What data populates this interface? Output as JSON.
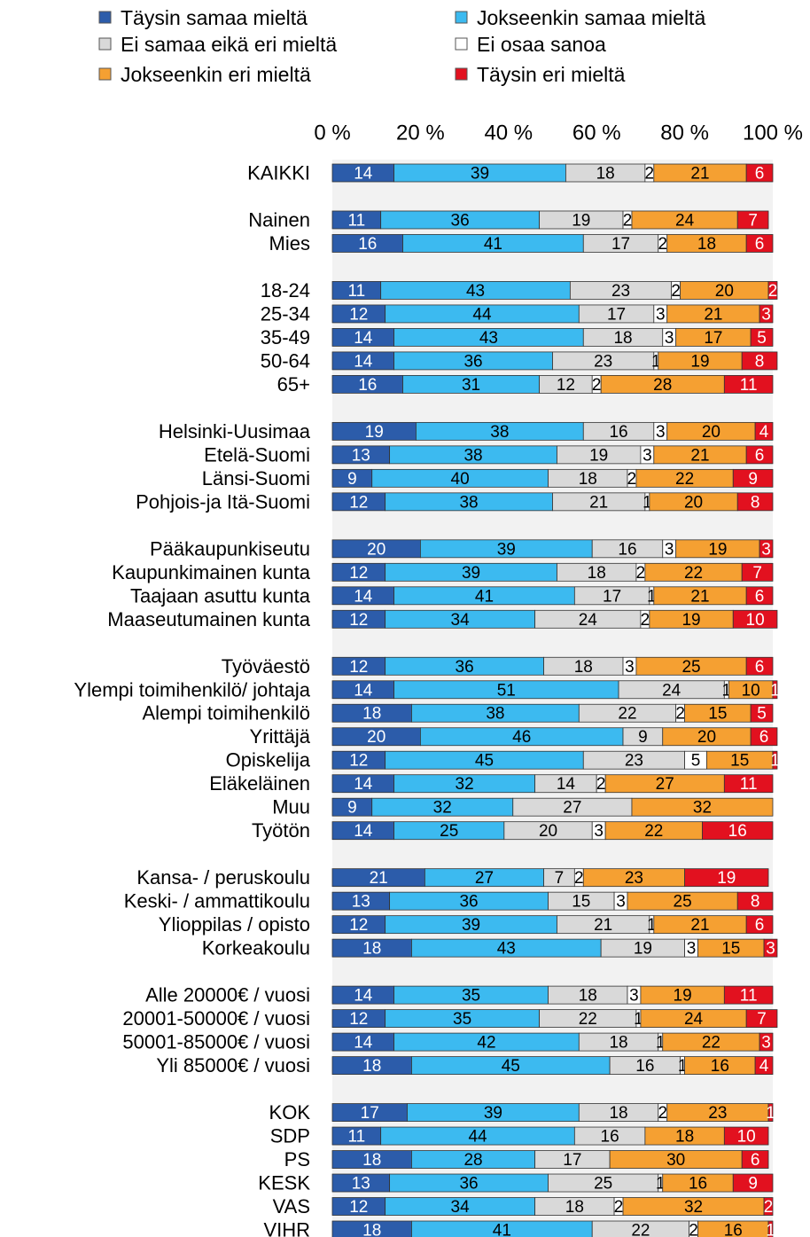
{
  "chart_data": {
    "type": "stacked_barh",
    "xlim": [
      0,
      100
    ],
    "xticks": [
      {
        "value": 0,
        "label": "0 %"
      },
      {
        "value": 20,
        "label": "20 %"
      },
      {
        "value": 40,
        "label": "40 %"
      },
      {
        "value": 60,
        "label": "60 %"
      },
      {
        "value": 80,
        "label": "80 %"
      },
      {
        "value": 100,
        "label": "100 %"
      }
    ],
    "categories": [
      "KAIKKI",
      null,
      "Nainen",
      "Mies",
      null,
      "18-24",
      "25-34",
      "35-49",
      "50-64",
      "65+",
      null,
      "Helsinki-Uusimaa",
      "Etelä-Suomi",
      "Länsi-Suomi",
      "Pohjois-ja Itä-Suomi",
      null,
      "Pääkaupunkiseutu",
      "Kaupunkimainen kunta",
      "Taajaan asuttu kunta",
      "Maaseutumainen kunta",
      null,
      "Työväestö",
      "Ylempi toimihenkilö/ johtaja",
      "Alempi toimihenkilö",
      "Yrittäjä",
      "Opiskelija",
      "Eläkeläinen",
      "Muu",
      "Työtön",
      null,
      "Kansa- / peruskoulu",
      "Keski- / ammattikoulu",
      "Ylioppilas / opisto",
      "Korkeakoulu",
      null,
      "Alle 20000€ / vuosi",
      "20001-50000€ / vuosi",
      "50001-85000€ / vuosi",
      "Yli 85000€ / vuosi",
      null,
      "KOK",
      "SDP",
      "PS",
      "KESK",
      "VAS",
      "VIHR"
    ],
    "series": [
      {
        "name": "Täysin samaa mieltä",
        "color": "#2c5caa",
        "values": [
          14,
          null,
          11,
          16,
          null,
          11,
          12,
          14,
          14,
          16,
          null,
          19,
          13,
          9,
          12,
          null,
          20,
          12,
          14,
          12,
          null,
          12,
          14,
          18,
          20,
          12,
          14,
          9,
          14,
          null,
          21,
          13,
          12,
          18,
          null,
          14,
          12,
          14,
          18,
          null,
          17,
          11,
          18,
          13,
          12,
          18
        ]
      },
      {
        "name": "Jokseenkin samaa mieltä",
        "color": "#3cbaf0",
        "values": [
          39,
          null,
          36,
          41,
          null,
          43,
          44,
          43,
          36,
          31,
          null,
          38,
          38,
          40,
          38,
          null,
          39,
          39,
          41,
          34,
          null,
          36,
          51,
          38,
          46,
          45,
          32,
          32,
          25,
          null,
          27,
          36,
          39,
          43,
          null,
          35,
          35,
          42,
          45,
          null,
          39,
          44,
          28,
          36,
          34,
          41
        ]
      },
      {
        "name": "Ei samaa eikä eri mieltä",
        "color": "#d9d9d9",
        "values": [
          18,
          null,
          19,
          17,
          null,
          23,
          17,
          18,
          23,
          12,
          null,
          16,
          19,
          18,
          21,
          null,
          16,
          18,
          17,
          24,
          null,
          18,
          24,
          22,
          9,
          23,
          14,
          27,
          20,
          null,
          7,
          15,
          21,
          19,
          null,
          18,
          22,
          18,
          16,
          null,
          18,
          16,
          17,
          25,
          18,
          22
        ]
      },
      {
        "name": "Ei osaa sanoa",
        "color": "#ffffff",
        "values": [
          2,
          null,
          2,
          2,
          null,
          2,
          3,
          3,
          1,
          2,
          null,
          3,
          3,
          2,
          1,
          null,
          3,
          2,
          1,
          2,
          null,
          3,
          1,
          2,
          0,
          5,
          2,
          0,
          3,
          null,
          2,
          3,
          1,
          3,
          null,
          3,
          1,
          1,
          1,
          null,
          2,
          0,
          0,
          1,
          2,
          2
        ]
      },
      {
        "name": "Jokseenkin eri mieltä",
        "color": "#f5a032",
        "values": [
          21,
          null,
          24,
          18,
          null,
          20,
          21,
          17,
          19,
          28,
          null,
          20,
          21,
          22,
          20,
          null,
          19,
          22,
          21,
          19,
          null,
          25,
          10,
          15,
          20,
          15,
          27,
          32,
          22,
          null,
          23,
          25,
          21,
          15,
          null,
          19,
          24,
          22,
          16,
          null,
          23,
          18,
          30,
          16,
          32,
          16
        ]
      },
      {
        "name": "Täysin eri mieltä",
        "color": "#e2111f",
        "values": [
          6,
          null,
          7,
          6,
          null,
          2,
          3,
          5,
          8,
          11,
          null,
          4,
          6,
          9,
          8,
          null,
          3,
          7,
          6,
          10,
          null,
          6,
          1,
          5,
          6,
          1,
          11,
          0,
          16,
          null,
          19,
          8,
          6,
          3,
          null,
          11,
          7,
          3,
          4,
          null,
          1,
          10,
          6,
          9,
          2,
          1
        ]
      }
    ]
  }
}
